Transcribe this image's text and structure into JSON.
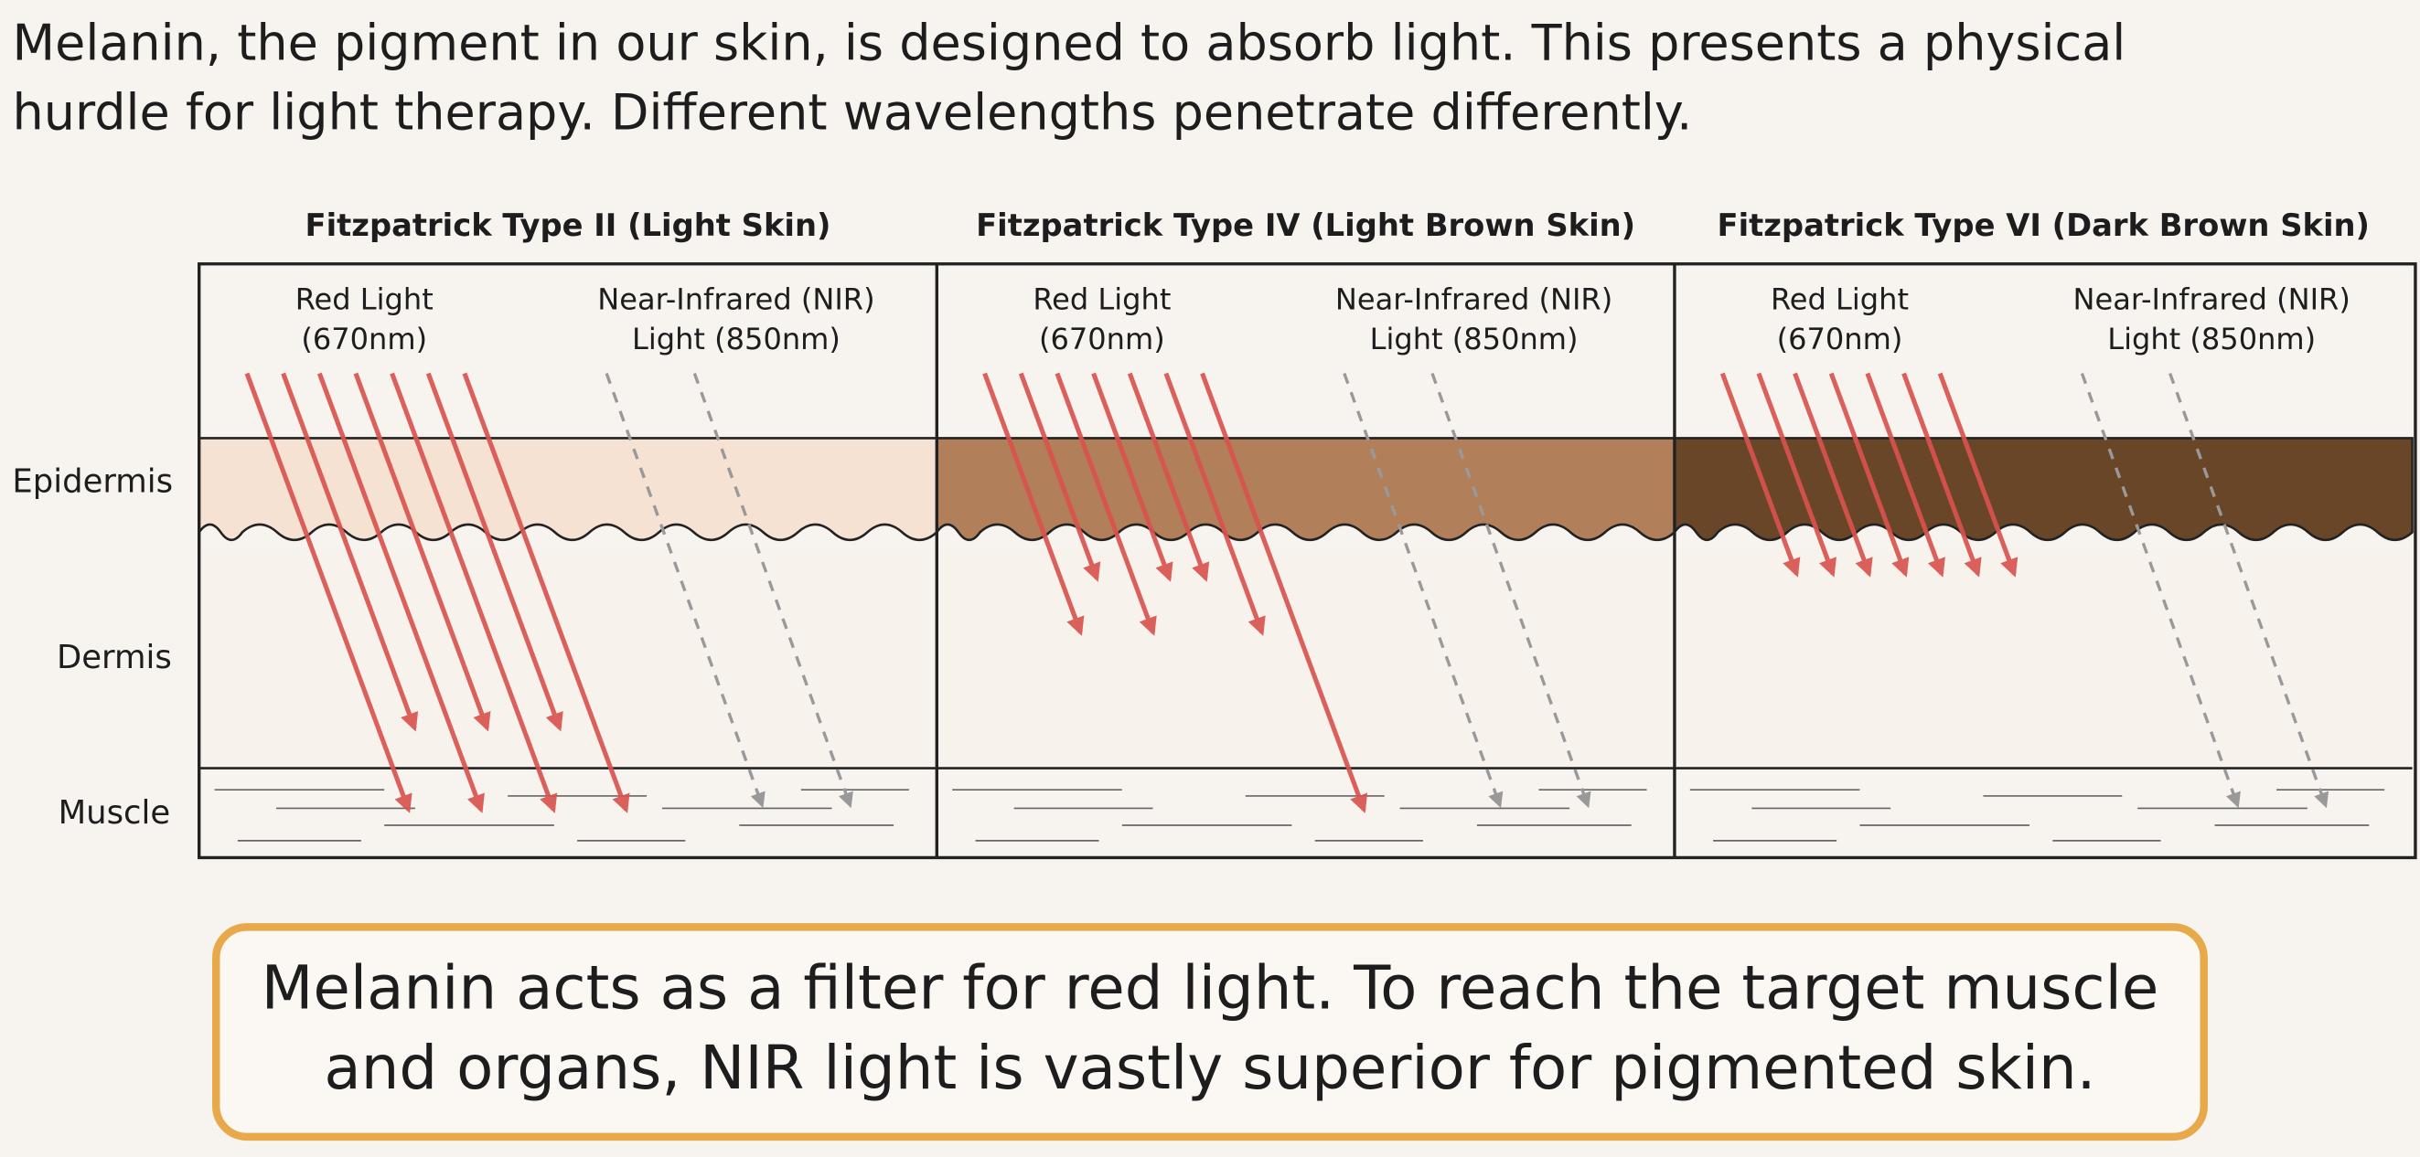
{
  "intro": {
    "lines": [
      "Melanin, the pigment in our skin, is designed to absorb light. This presents a physical",
      "hurdle for light therapy. Different wavelengths penetrate differently."
    ]
  },
  "panels": [
    {
      "title": "Fitzpatrick Type II (Light Skin)",
      "red_label": [
        "Red Light",
        "(670nm)"
      ],
      "nir_label": [
        "Near-Infrared (NIR)",
        "Light (850nm)"
      ]
    },
    {
      "title": "Fitzpatrick Type IV (Light Brown Skin)",
      "red_label": [
        "Red Light",
        "(670nm)"
      ],
      "nir_label": [
        "Near-Infrared (NIR)",
        "Light (850nm)"
      ]
    },
    {
      "title": "Fitzpatrick Type VI (Dark Brown Skin)",
      "red_label": [
        "Red Light",
        "(670nm)"
      ],
      "nir_label": [
        "Near-Infrared (NIR)",
        "Light (850nm)"
      ]
    }
  ],
  "layers": [
    "Epidermis",
    "Dermis",
    "Muscle"
  ],
  "conclusion": {
    "lines": [
      "Melanin acts as a filter for red light. To reach the target muscle",
      "and organs, NIR light is vastly superior for pigmented skin."
    ]
  }
}
